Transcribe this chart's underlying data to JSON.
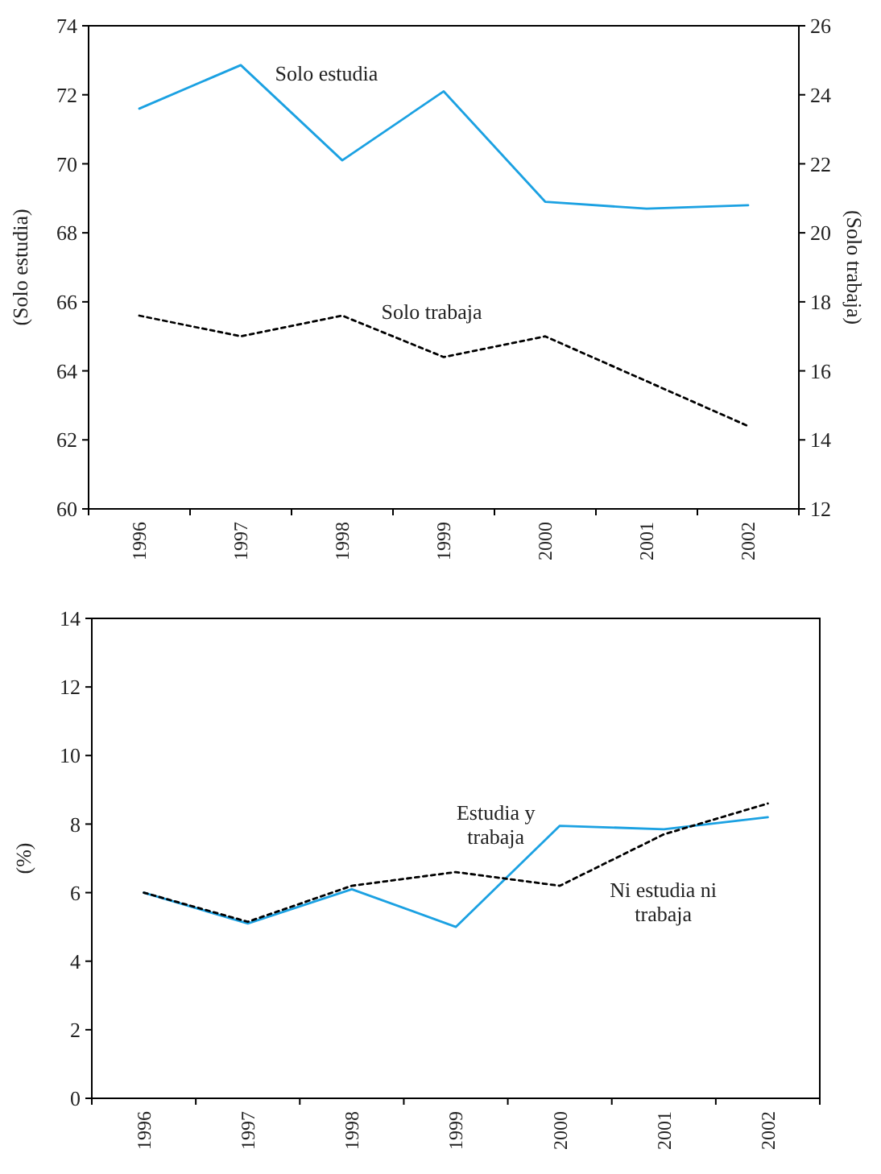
{
  "chart_data": [
    {
      "type": "line",
      "categories": [
        "1996",
        "1997",
        "1998",
        "1999",
        "2000",
        "2001",
        "2002"
      ],
      "ylabel": "(Solo estudia)",
      "y2label": "(Solo trabaja)",
      "ylim": [
        60,
        74
      ],
      "yticks": [
        60,
        62,
        64,
        66,
        68,
        70,
        72,
        74
      ],
      "y2lim": [
        12,
        26
      ],
      "y2ticks": [
        12,
        14,
        16,
        18,
        20,
        22,
        24,
        26
      ],
      "series": [
        {
          "name": "Solo estudia",
          "color": "#1ba1e2",
          "line_style": "solid",
          "values": [
            71.6,
            72.86,
            70.1,
            72.1,
            68.9,
            68.7,
            68.8
          ]
        },
        {
          "name": "Solo trabaja",
          "color": "#000000",
          "line_style": "dotted",
          "axis": "y2",
          "values": [
            17.6,
            17.0,
            17.6,
            16.4,
            17.0,
            15.7,
            14.4
          ]
        }
      ]
    },
    {
      "type": "line",
      "categories": [
        "1996",
        "1997",
        "1998",
        "1999",
        "2000",
        "2001",
        "2002"
      ],
      "ylabel": "(%)",
      "ylim": [
        0,
        14
      ],
      "yticks": [
        0,
        2,
        4,
        6,
        8,
        10,
        12,
        14
      ],
      "series": [
        {
          "name": "Estudia y trabaja",
          "color": "#1ba1e2",
          "line_style": "solid",
          "values": [
            6.0,
            5.1,
            6.1,
            5.0,
            7.95,
            7.85,
            8.2
          ]
        },
        {
          "name": "Ni estudia ni trabaja",
          "color": "#000000",
          "line_style": "dotted",
          "values": [
            6.0,
            5.15,
            6.2,
            6.6,
            6.2,
            7.7,
            8.6
          ]
        }
      ]
    }
  ]
}
